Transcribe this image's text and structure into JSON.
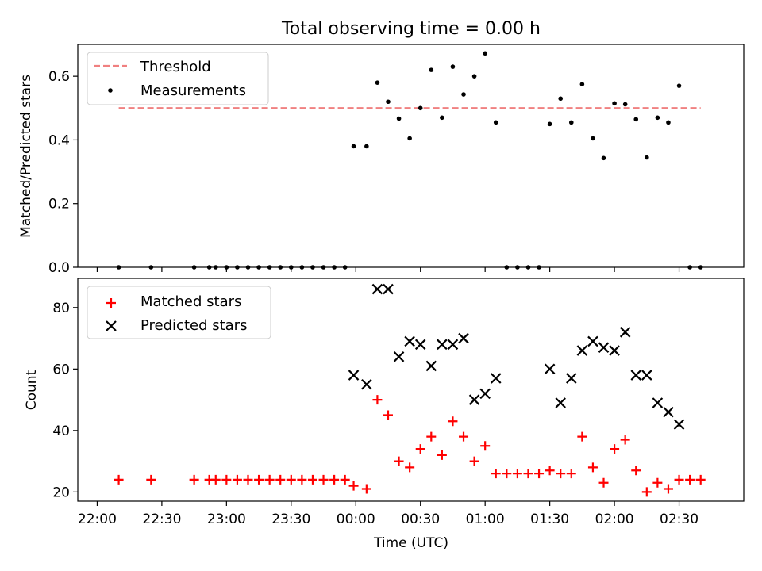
{
  "chart_data": [
    {
      "type": "scatter",
      "title": "Total observing time = 0.00 h",
      "ylabel": "Matched/Predicted stars",
      "xlim": [
        "21:51",
        "03:00"
      ],
      "ylim": [
        0,
        0.7
      ],
      "yticks": [
        "0.0",
        "0.2",
        "0.4",
        "0.6"
      ],
      "legend": {
        "position": "top-left",
        "entries": [
          "Threshold",
          "Measurements"
        ]
      },
      "threshold": {
        "name": "Threshold",
        "value": 0.5,
        "x_start": "22:10",
        "x_end": "02:40",
        "color": "#f08080",
        "style": "dashed"
      },
      "series": [
        {
          "name": "Measurements",
          "color": "#000000",
          "points": [
            [
              "22:10",
              0
            ],
            [
              "22:25",
              0
            ],
            [
              "22:45",
              0
            ],
            [
              "22:52",
              0
            ],
            [
              "22:55",
              0
            ],
            [
              "23:00",
              0
            ],
            [
              "23:05",
              0
            ],
            [
              "23:10",
              0
            ],
            [
              "23:15",
              0
            ],
            [
              "23:20",
              0
            ],
            [
              "23:25",
              0
            ],
            [
              "23:30",
              0
            ],
            [
              "23:35",
              0
            ],
            [
              "23:40",
              0
            ],
            [
              "23:45",
              0
            ],
            [
              "23:50",
              0
            ],
            [
              "23:55",
              0
            ],
            [
              "23:59",
              0.38
            ],
            [
              "00:05",
              0.38
            ],
            [
              "00:10",
              0.58
            ],
            [
              "00:15",
              0.52
            ],
            [
              "00:20",
              0.467
            ],
            [
              "00:25",
              0.405
            ],
            [
              "00:30",
              0.5
            ],
            [
              "00:35",
              0.62
            ],
            [
              "00:40",
              0.47
            ],
            [
              "00:45",
              0.63
            ],
            [
              "00:50",
              0.543
            ],
            [
              "00:55",
              0.6
            ],
            [
              "01:00",
              0.672
            ],
            [
              "01:05",
              0.455
            ],
            [
              "01:10",
              0
            ],
            [
              "01:15",
              0
            ],
            [
              "01:20",
              0
            ],
            [
              "01:25",
              0
            ],
            [
              "01:30",
              0.45
            ],
            [
              "01:35",
              0.53
            ],
            [
              "01:40",
              0.455
            ],
            [
              "01:45",
              0.575
            ],
            [
              "01:50",
              0.405
            ],
            [
              "01:55",
              0.343
            ],
            [
              "02:00",
              0.515
            ],
            [
              "02:05",
              0.512
            ],
            [
              "02:10",
              0.465
            ],
            [
              "02:15",
              0.345
            ],
            [
              "02:20",
              0.47
            ],
            [
              "02:25",
              0.455
            ],
            [
              "02:30",
              0.57
            ],
            [
              "02:35",
              0
            ],
            [
              "02:40",
              0
            ]
          ]
        }
      ]
    },
    {
      "type": "scatter",
      "ylabel": "Count",
      "xlabel": "Time (UTC)",
      "xlim": [
        "21:51",
        "03:00"
      ],
      "ylim": [
        17,
        89.5
      ],
      "yticks": [
        "20",
        "40",
        "60",
        "80"
      ],
      "xticks": [
        "22:00",
        "22:30",
        "23:00",
        "23:30",
        "00:00",
        "00:30",
        "01:00",
        "01:30",
        "02:00",
        "02:30"
      ],
      "legend": {
        "position": "top-left",
        "entries": [
          "Matched stars",
          "Predicted stars"
        ]
      },
      "series": [
        {
          "name": "Matched stars",
          "marker": "plus",
          "color": "#ff0000",
          "points": [
            [
              "22:10",
              24
            ],
            [
              "22:25",
              24
            ],
            [
              "22:45",
              24
            ],
            [
              "22:52",
              24
            ],
            [
              "22:55",
              24
            ],
            [
              "23:00",
              24
            ],
            [
              "23:05",
              24
            ],
            [
              "23:10",
              24
            ],
            [
              "23:15",
              24
            ],
            [
              "23:20",
              24
            ],
            [
              "23:25",
              24
            ],
            [
              "23:30",
              24
            ],
            [
              "23:35",
              24
            ],
            [
              "23:40",
              24
            ],
            [
              "23:45",
              24
            ],
            [
              "23:50",
              24
            ],
            [
              "23:55",
              24
            ],
            [
              "23:59",
              22
            ],
            [
              "00:05",
              21
            ],
            [
              "00:10",
              50
            ],
            [
              "00:15",
              45
            ],
            [
              "00:20",
              30
            ],
            [
              "00:25",
              28
            ],
            [
              "00:30",
              34
            ],
            [
              "00:35",
              38
            ],
            [
              "00:40",
              32
            ],
            [
              "00:45",
              43
            ],
            [
              "00:50",
              38
            ],
            [
              "00:55",
              30
            ],
            [
              "01:00",
              35
            ],
            [
              "01:05",
              26
            ],
            [
              "01:10",
              26
            ],
            [
              "01:15",
              26
            ],
            [
              "01:20",
              26
            ],
            [
              "01:25",
              26
            ],
            [
              "01:30",
              27
            ],
            [
              "01:35",
              26
            ],
            [
              "01:40",
              26
            ],
            [
              "01:45",
              38
            ],
            [
              "01:50",
              28
            ],
            [
              "01:55",
              23
            ],
            [
              "02:00",
              34
            ],
            [
              "02:05",
              37
            ],
            [
              "02:10",
              27
            ],
            [
              "02:15",
              20
            ],
            [
              "02:20",
              23
            ],
            [
              "02:25",
              21
            ],
            [
              "02:30",
              24
            ],
            [
              "02:35",
              24
            ],
            [
              "02:40",
              24
            ]
          ]
        },
        {
          "name": "Predicted stars",
          "marker": "x",
          "color": "#000000",
          "points": [
            [
              "23:59",
              58
            ],
            [
              "00:05",
              55
            ],
            [
              "00:10",
              86
            ],
            [
              "00:15",
              86
            ],
            [
              "00:20",
              64
            ],
            [
              "00:25",
              69
            ],
            [
              "00:30",
              68
            ],
            [
              "00:35",
              61
            ],
            [
              "00:40",
              68
            ],
            [
              "00:45",
              68
            ],
            [
              "00:50",
              70
            ],
            [
              "00:55",
              50
            ],
            [
              "01:00",
              52
            ],
            [
              "01:05",
              57
            ],
            [
              "01:30",
              60
            ],
            [
              "01:35",
              49
            ],
            [
              "01:40",
              57
            ],
            [
              "01:45",
              66
            ],
            [
              "01:50",
              69
            ],
            [
              "01:55",
              67
            ],
            [
              "02:00",
              66
            ],
            [
              "02:05",
              72
            ],
            [
              "02:10",
              58
            ],
            [
              "02:15",
              58
            ],
            [
              "02:20",
              49
            ],
            [
              "02:25",
              46
            ],
            [
              "02:30",
              42
            ]
          ]
        }
      ]
    }
  ]
}
